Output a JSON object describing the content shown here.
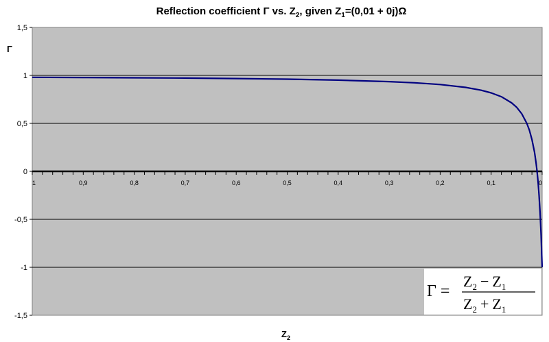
{
  "chart_data": {
    "type": "line",
    "title": {
      "prefix": "Reflection coefficient Γ vs. Z",
      "sub1": "2",
      "middle": ", given Z",
      "sub2": "1",
      "suffix": "=(0,01 + 0j)Ω"
    },
    "xlabel": {
      "main": "Z",
      "sub": "2"
    },
    "ylabel": "Γ",
    "xlim": [
      1,
      0
    ],
    "x_reversed": true,
    "ylim": [
      -1.5,
      1.5
    ],
    "yticks": [
      1.5,
      1,
      0.5,
      0,
      -0.5,
      -1,
      -1.5
    ],
    "ytick_labels": [
      "1,5",
      "1",
      "0,5",
      "0",
      "-0,5",
      "-1",
      "-1,5"
    ],
    "xticks": [
      1,
      0.9,
      0.8,
      0.7,
      0.6,
      0.5,
      0.4,
      0.3,
      0.2,
      0.1,
      0
    ],
    "xtick_labels": [
      "1",
      "0,9",
      "0,8",
      "0,7",
      "0,6",
      "0,5",
      "0,4",
      "0,3",
      "0,2",
      "0,1",
      "0"
    ],
    "grid": true,
    "plot_background": "#c0c0c0",
    "series": [
      {
        "color": "#000080",
        "x": [
          1,
          0.9,
          0.8,
          0.7,
          0.6,
          0.5,
          0.4,
          0.3,
          0.25,
          0.2,
          0.15,
          0.12,
          0.1,
          0.08,
          0.06,
          0.05,
          0.04,
          0.03,
          0.025,
          0.02,
          0.015,
          0.012,
          0.01,
          0.008,
          0.006,
          0.004,
          0.002,
          0
        ],
        "y": [
          0.98,
          0.978,
          0.975,
          0.972,
          0.967,
          0.961,
          0.951,
          0.935,
          0.923,
          0.905,
          0.875,
          0.846,
          0.818,
          0.778,
          0.714,
          0.667,
          0.6,
          0.5,
          0.429,
          0.333,
          0.2,
          0.091,
          0,
          -0.111,
          -0.25,
          -0.429,
          -0.667,
          -1
        ]
      }
    ],
    "annotation": {
      "lhs": "Γ =",
      "numerator": {
        "a": "Z",
        "a_sub": "2",
        "op": "−",
        "b": "Z",
        "b_sub": "1"
      },
      "denominator": {
        "a": "Z",
        "a_sub": "2",
        "op": "+",
        "b": "Z",
        "b_sub": "1"
      }
    }
  }
}
